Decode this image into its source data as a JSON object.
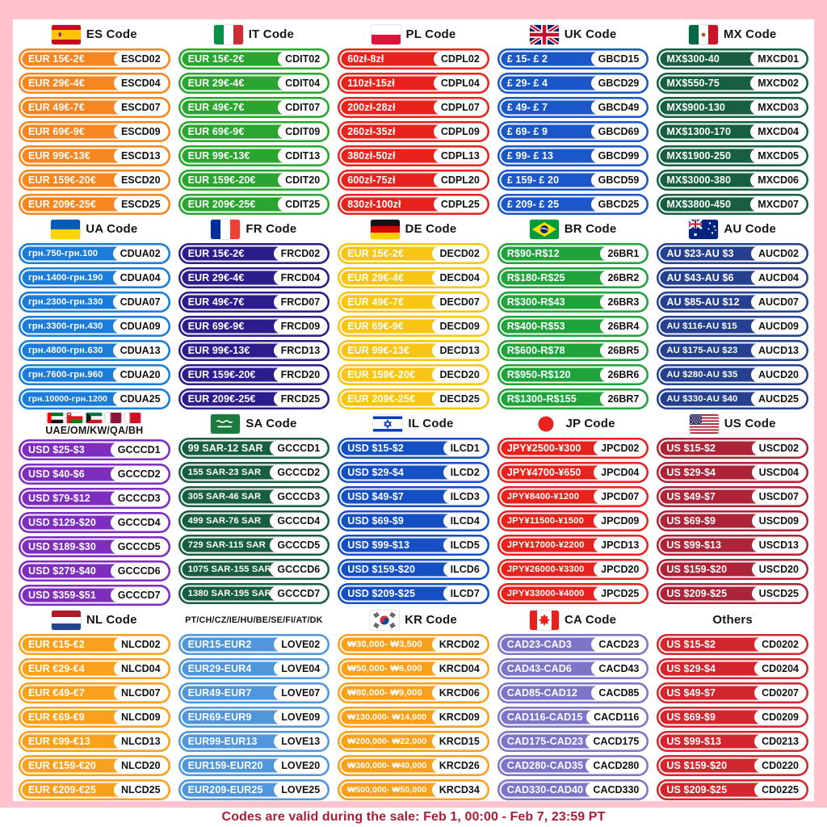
{
  "footer": {
    "text": "Codes are valid during the sale: Feb 1, 00:00 - Feb 7, 23:59 PT"
  },
  "sections": [
    {
      "id": "es",
      "title": "ES Code",
      "flags": [
        "es"
      ],
      "color": "#F6861F",
      "rows": [
        {
          "range": "EUR 15€-2€",
          "code": "ESCD02"
        },
        {
          "range": "EUR 29€-4€",
          "code": "ESCD04"
        },
        {
          "range": "EUR 49€-7€",
          "code": "ESCD07"
        },
        {
          "range": "EUR 69€-9€",
          "code": "ESCD09"
        },
        {
          "range": "EUR 99€-13€",
          "code": "ESCD13"
        },
        {
          "range": "EUR 159€-20€",
          "code": "ESCD20"
        },
        {
          "range": "EUR 209€-25€",
          "code": "ESCD25"
        }
      ]
    },
    {
      "id": "it",
      "title": "IT Code",
      "flags": [
        "it"
      ],
      "color": "#2AA52F",
      "rows": [
        {
          "range": "EUR 15€-2€",
          "code": "CDIT02"
        },
        {
          "range": "EUR 29€-4€",
          "code": "CDIT04"
        },
        {
          "range": "EUR 49€-7€",
          "code": "CDIT07"
        },
        {
          "range": "EUR 69€-9€",
          "code": "CDIT09"
        },
        {
          "range": "EUR 99€-13€",
          "code": "CDIT13"
        },
        {
          "range": "EUR 159€-20€",
          "code": "CDIT20"
        },
        {
          "range": "EUR 209€-25€",
          "code": "CDIT25"
        }
      ]
    },
    {
      "id": "pl",
      "title": "PL Code",
      "flags": [
        "pl"
      ],
      "color": "#E8231D",
      "rows": [
        {
          "range": "60zł-8zł",
          "code": "CDPL02"
        },
        {
          "range": "110zł-15zł",
          "code": "CDPL04"
        },
        {
          "range": "200zł-28zł",
          "code": "CDPL07"
        },
        {
          "range": "260zł-35zł",
          "code": "CDPL09"
        },
        {
          "range": "380zł-50zł",
          "code": "CDPL13"
        },
        {
          "range": "600zł-75zł",
          "code": "CDPL20"
        },
        {
          "range": "830zł-100zł",
          "code": "CDPL25"
        }
      ]
    },
    {
      "id": "uk",
      "title": "UK Code",
      "flags": [
        "uk"
      ],
      "color": "#1C57C9",
      "rows": [
        {
          "range": "£ 15- £ 2",
          "code": "GBCD15"
        },
        {
          "range": "£ 29- £ 4",
          "code": "GBCD29"
        },
        {
          "range": "£ 49- £ 7",
          "code": "GBCD49"
        },
        {
          "range": "£ 69- £ 9",
          "code": "GBCD69"
        },
        {
          "range": "£ 99- £ 13",
          "code": "GBCD99"
        },
        {
          "range": "£ 159- £ 20",
          "code": "GBCD59"
        },
        {
          "range": "£ 209- £ 25",
          "code": "GBCD25"
        }
      ]
    },
    {
      "id": "mx",
      "title": "MX Code",
      "flags": [
        "mx"
      ],
      "color": "#175F40",
      "rows": [
        {
          "range": "MX$300-40",
          "code": "MXCD01"
        },
        {
          "range": "MX$550-75",
          "code": "MXCD02"
        },
        {
          "range": "MX$900-130",
          "code": "MXCD03"
        },
        {
          "range": "MX$1300-170",
          "code": "MXCD04"
        },
        {
          "range": "MX$1900-250",
          "code": "MXCD05"
        },
        {
          "range": "MX$3000-380",
          "code": "MXCD06"
        },
        {
          "range": "MX$3800-450",
          "code": "MXCD07"
        }
      ]
    },
    {
      "id": "ua",
      "title": "UA Code",
      "flags": [
        "ua"
      ],
      "color": "#1B7CD9",
      "rows": [
        {
          "range": "грн.750-грн.100",
          "code": "CDUA02"
        },
        {
          "range": "грн.1400-грн.190",
          "code": "CDUA04"
        },
        {
          "range": "грн.2300-грн.330",
          "code": "CDUA07"
        },
        {
          "range": "грн.3300-грн.430",
          "code": "CDUA09"
        },
        {
          "range": "грн.4800-грн.630",
          "code": "CDUA13"
        },
        {
          "range": "грн.7600-грн.960",
          "code": "CDUA20"
        },
        {
          "range": "грн.10000-грн.1200",
          "code": "CDUA25"
        }
      ]
    },
    {
      "id": "fr",
      "title": "FR Code",
      "flags": [
        "fr"
      ],
      "color": "#2B1D8C",
      "rows": [
        {
          "range": "EUR 15€-2€",
          "code": "FRCD02"
        },
        {
          "range": "EUR 29€-4€",
          "code": "FRCD04"
        },
        {
          "range": "EUR 49€-7€",
          "code": "FRCD07"
        },
        {
          "range": "EUR 69€-9€",
          "code": "FRCD09"
        },
        {
          "range": "EUR 99€-13€",
          "code": "FRCD13"
        },
        {
          "range": "EUR 159€-20€",
          "code": "FRCD20"
        },
        {
          "range": "EUR 209€-25€",
          "code": "FRCD25"
        }
      ]
    },
    {
      "id": "de",
      "title": "DE Code",
      "flags": [
        "de"
      ],
      "color": "#F7C512",
      "rows": [
        {
          "range": "EUR 15€-2€",
          "code": "DECD02"
        },
        {
          "range": "EUR 29€-4€",
          "code": "DECD04"
        },
        {
          "range": "EUR 49€-7€",
          "code": "DECD07"
        },
        {
          "range": "EUR 69€-9€",
          "code": "DECD09"
        },
        {
          "range": "EUR 99€-13€",
          "code": "DECD13"
        },
        {
          "range": "EUR 159€-20€",
          "code": "DECD20"
        },
        {
          "range": "EUR 209€-25€",
          "code": "DECD25"
        }
      ]
    },
    {
      "id": "br",
      "title": "BR Code",
      "flags": [
        "br"
      ],
      "color": "#1FA33A",
      "rows": [
        {
          "range": "R$90-R$12",
          "code": "26BR1"
        },
        {
          "range": "R$180-R$25",
          "code": "26BR2"
        },
        {
          "range": "R$300-R$43",
          "code": "26BR3"
        },
        {
          "range": "R$400-R$53",
          "code": "26BR4"
        },
        {
          "range": "R$600-R$78",
          "code": "26BR5"
        },
        {
          "range": "R$950-R$120",
          "code": "26BR6"
        },
        {
          "range": "R$1300-R$155",
          "code": "26BR7"
        }
      ]
    },
    {
      "id": "au",
      "title": "AU Code",
      "flags": [
        "au"
      ],
      "color": "#24408F",
      "rows": [
        {
          "range": "AU $23-AU $3",
          "code": "AUCD02"
        },
        {
          "range": "AU $43-AU $6",
          "code": "AUCD04"
        },
        {
          "range": "AU $85-AU $12",
          "code": "AUCD07"
        },
        {
          "range": "AU $116-AU $15",
          "code": "AUCD09"
        },
        {
          "range": "AU $175-AU $23",
          "code": "AUCD13"
        },
        {
          "range": "AU $280-AU $35",
          "code": "AUCD20"
        },
        {
          "range": "AU $330-AU $40",
          "code": "AUCD25"
        }
      ]
    },
    {
      "id": "gcc",
      "title": "UAE/OM/KW/QA/BH",
      "flags": [
        "are",
        "om",
        "kw",
        "qa",
        "bh"
      ],
      "stacked": true,
      "color": "#7D2EBF",
      "rows": [
        {
          "range": "USD $25-$3",
          "code": "GCCCD1"
        },
        {
          "range": "USD $40-$6",
          "code": "GCCCD2"
        },
        {
          "range": "USD $79-$12",
          "code": "GCCCD3"
        },
        {
          "range": "USD $129-$20",
          "code": "GCCCD4"
        },
        {
          "range": "USD $189-$30",
          "code": "GCCCD5"
        },
        {
          "range": "USD $279-$40",
          "code": "GCCCD6"
        },
        {
          "range": "USD $359-$51",
          "code": "GCCCD7"
        }
      ]
    },
    {
      "id": "sa",
      "title": "SA Code",
      "flags": [
        "sa"
      ],
      "color": "#175F40",
      "rows": [
        {
          "range": "99 SAR-12 SAR",
          "code": "GCCCD1"
        },
        {
          "range": "155 SAR-23 SAR",
          "code": "GCCCD2"
        },
        {
          "range": "305 SAR-46 SAR",
          "code": "GCCCD3"
        },
        {
          "range": "499 SAR-76 SAR",
          "code": "GCCCD4"
        },
        {
          "range": "729 SAR-115 SAR",
          "code": "GCCCD5"
        },
        {
          "range": "1075 SAR-155 SAR",
          "code": "GCCCD6"
        },
        {
          "range": "1380 SAR-195 SAR",
          "code": "GCCCD7"
        }
      ]
    },
    {
      "id": "il",
      "title": "IL Code",
      "flags": [
        "il"
      ],
      "color": "#1450C4",
      "rows": [
        {
          "range": "USD $15-$2",
          "code": "ILCD1"
        },
        {
          "range": "USD $29-$4",
          "code": "ILCD2"
        },
        {
          "range": "USD $49-$7",
          "code": "ILCD3"
        },
        {
          "range": "USD $69-$9",
          "code": "ILCD4"
        },
        {
          "range": "USD $99-$13",
          "code": "ILCD5"
        },
        {
          "range": "USD $159-$20",
          "code": "ILCD6"
        },
        {
          "range": "USD $209-$25",
          "code": "ILCD7"
        }
      ]
    },
    {
      "id": "jp",
      "title": "JP Code",
      "flags": [
        "jp"
      ],
      "color": "#E8231D",
      "rows": [
        {
          "range": "JPY¥2500-¥300",
          "code": "JPCD02"
        },
        {
          "range": "JPY¥4700-¥650",
          "code": "JPCD04"
        },
        {
          "range": "JPY¥8400-¥1200",
          "code": "JPCD07"
        },
        {
          "range": "JPY¥11500-¥1500",
          "code": "JPCD09"
        },
        {
          "range": "JPY¥17000-¥2200",
          "code": "JPCD13"
        },
        {
          "range": "JPY¥26000-¥3300",
          "code": "JPCD20"
        },
        {
          "range": "JPY¥33000-¥4000",
          "code": "JPCD25"
        }
      ]
    },
    {
      "id": "us",
      "title": "US Code",
      "flags": [
        "us"
      ],
      "color": "#AD2338",
      "rows": [
        {
          "range": "US $15-$2",
          "code": "USCD02"
        },
        {
          "range": "US $29-$4",
          "code": "USCD04"
        },
        {
          "range": "US $49-$7",
          "code": "USCD07"
        },
        {
          "range": "US $69-$9",
          "code": "USCD09"
        },
        {
          "range": "US $99-$13",
          "code": "USCD13"
        },
        {
          "range": "US $159-$20",
          "code": "USCD20"
        },
        {
          "range": "US $209-$25",
          "code": "USCD25"
        }
      ]
    },
    {
      "id": "nl",
      "title": "NL Code",
      "flags": [
        "nl"
      ],
      "color": "#F9A01C",
      "rows": [
        {
          "range": "EUR €15-€2",
          "code": "NLCD02"
        },
        {
          "range": "EUR €29-€4",
          "code": "NLCD04"
        },
        {
          "range": "EUR €49-€7",
          "code": "NLCD07"
        },
        {
          "range": "EUR €69-€9",
          "code": "NLCD09"
        },
        {
          "range": "EUR €99-€13",
          "code": "NLCD13"
        },
        {
          "range": "EUR €159-€20",
          "code": "NLCD20"
        },
        {
          "range": "EUR €209-€25",
          "code": "NLCD25"
        }
      ]
    },
    {
      "id": "love",
      "title": "PT/CH/CZ/IE/HU/BE/SE/FI/AT/DK",
      "flags": [],
      "color": "#4F96DA",
      "rows": [
        {
          "range": "EUR15-EUR2",
          "code": "LOVE02"
        },
        {
          "range": "EUR29-EUR4",
          "code": "LOVE04"
        },
        {
          "range": "EUR49-EUR7",
          "code": "LOVE07"
        },
        {
          "range": "EUR69-EUR9",
          "code": "LOVE09"
        },
        {
          "range": "EUR99-EUR13",
          "code": "LOVE13"
        },
        {
          "range": "EUR159-EUR20",
          "code": "LOVE20"
        },
        {
          "range": "EUR209-EUR25",
          "code": "LOVE25"
        }
      ]
    },
    {
      "id": "kr",
      "title": "KR Code",
      "flags": [
        "kr"
      ],
      "color": "#F9A01C",
      "rows": [
        {
          "range": "₩30,000- ₩3,500",
          "code": "KRCD02"
        },
        {
          "range": "₩50,000- ₩6,000",
          "code": "KRCD04"
        },
        {
          "range": "₩80,000- ₩9,000",
          "code": "KRCD06"
        },
        {
          "range": "₩130,000- ₩14,000",
          "code": "KRCD09"
        },
        {
          "range": "₩200,000- ₩22,000",
          "code": "KRCD15"
        },
        {
          "range": "₩360,000- ₩40,000",
          "code": "KRCD26"
        },
        {
          "range": "₩500,000- ₩50,000",
          "code": "KRCD34"
        }
      ]
    },
    {
      "id": "ca",
      "title": "CA Code",
      "flags": [
        "ca"
      ],
      "color": "#7C75C8",
      "rows": [
        {
          "range": "CAD23-CAD3",
          "code": "CACD23"
        },
        {
          "range": "CAD43-CAD6",
          "code": "CACD43"
        },
        {
          "range": "CAD85-CAD12",
          "code": "CACD85"
        },
        {
          "range": "CAD116-CAD15",
          "code": "CACD116"
        },
        {
          "range": "CAD175-CAD23",
          "code": "CACD175"
        },
        {
          "range": "CAD280-CAD35",
          "code": "CACD280"
        },
        {
          "range": "CAD330-CAD40",
          "code": "CACD330"
        }
      ]
    },
    {
      "id": "others",
      "title": "Others",
      "flags": [],
      "color": "#D2272E",
      "rows": [
        {
          "range": "US $15-$2",
          "code": "CD0202"
        },
        {
          "range": "US $29-$4",
          "code": "CD0204"
        },
        {
          "range": "US $49-$7",
          "code": "CD0207"
        },
        {
          "range": "US $69-$9",
          "code": "CD0209"
        },
        {
          "range": "US $99-$13",
          "code": "CD0213"
        },
        {
          "range": "US $159-$20",
          "code": "CD0220"
        },
        {
          "range": "US $209-$25",
          "code": "CD0225"
        }
      ]
    }
  ]
}
